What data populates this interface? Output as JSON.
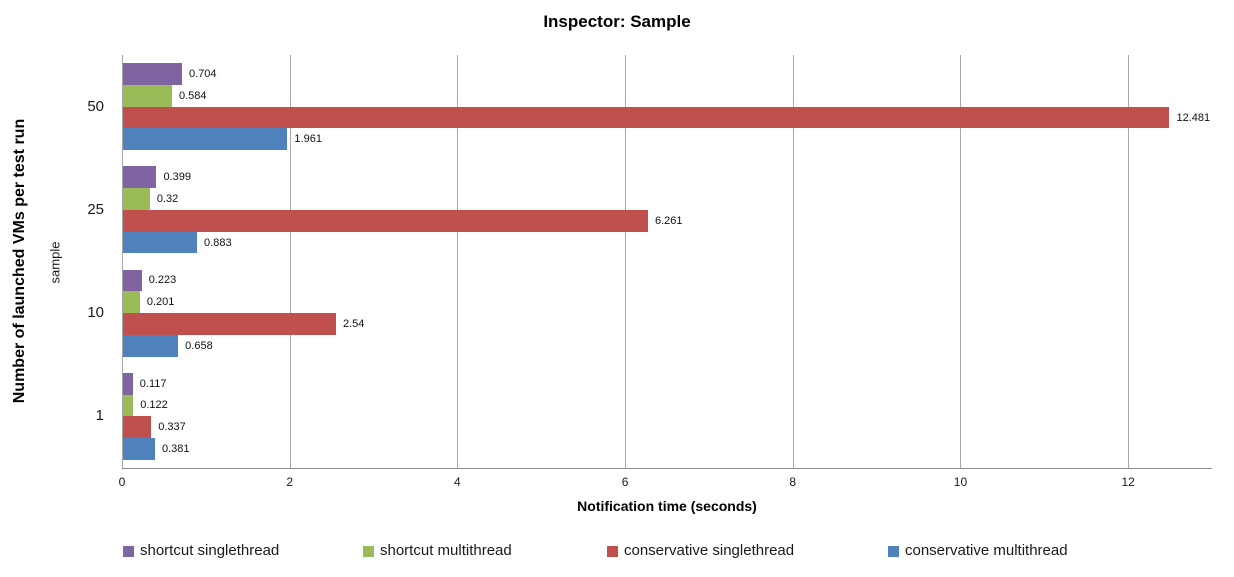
{
  "title": "Inspector: Sample",
  "chart_data": {
    "type": "bar",
    "orientation": "horizontal",
    "title": "Inspector: Sample",
    "xlabel": "Notification time (seconds)",
    "ylabel": "Number of launched VMs per test run",
    "ylabel_secondary": "sample",
    "categories": [
      "50",
      "25",
      "10",
      "1"
    ],
    "series": [
      {
        "name": "shortcut singlethread",
        "color": "#8064A2",
        "values": [
          0.704,
          0.399,
          0.223,
          0.117
        ],
        "labels": [
          "0.704",
          "0.399",
          "0.223",
          "0.117"
        ]
      },
      {
        "name": "shortcut multithread",
        "color": "#9BBB59",
        "values": [
          0.584,
          0.32,
          0.201,
          0.122
        ],
        "labels": [
          "0.584",
          "0.32",
          "0.201",
          "0.122"
        ]
      },
      {
        "name": "conservative singlethread",
        "color": "#C0504D",
        "values": [
          12.481,
          6.261,
          2.54,
          0.337
        ],
        "labels": [
          "12.481",
          "6.261",
          "2.54",
          "0.337"
        ]
      },
      {
        "name": "conservative multithread",
        "color": "#4F81BD",
        "values": [
          1.961,
          0.883,
          0.658,
          0.381
        ],
        "labels": [
          "1.961",
          "0.883",
          "0.658",
          "0.381"
        ]
      }
    ],
    "xlim": [
      0,
      13
    ],
    "x_ticks": [
      0,
      2,
      4,
      6,
      8,
      10,
      12
    ],
    "grid": true,
    "legend_position": "bottom",
    "gridline_color": "#A6A6A6"
  }
}
